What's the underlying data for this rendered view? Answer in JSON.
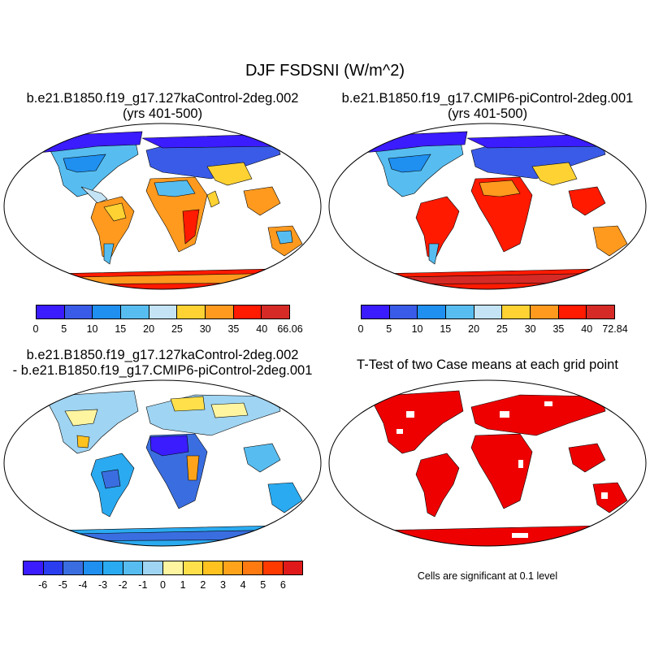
{
  "title": "DJF FSDSNI (W/m^2)",
  "panels": {
    "top_left": {
      "title_line1": "b.e21.B1850.f19_g17.127kaControl-2deg.002",
      "title_line2": "(yrs 401-500)"
    },
    "top_right": {
      "title_line1": "b.e21.B1850.f19_g17.CMIP6-piControl-2deg.001",
      "title_line2": "(yrs 401-500)"
    },
    "bottom_left": {
      "title_line1": "b.e21.B1850.f19_g17.127kaControl-2deg.002",
      "title_line2": "- b.e21.B1850.f19_g17.CMIP6-piControl-2deg.001"
    },
    "bottom_right": {
      "title_line1": "T-Test of two Case means at each grid point",
      "note": "Cells are significant at 0.1 level"
    }
  },
  "colorbars": {
    "case1": {
      "colors": [
        "#3a1cff",
        "#3a5be8",
        "#1f8ff0",
        "#57bdf0",
        "#c4e4f5",
        "#ffd233",
        "#ff9a1f",
        "#ff1a00",
        "#d62a26"
      ],
      "labels": [
        "0",
        "5",
        "10",
        "15",
        "20",
        "25",
        "30",
        "35",
        "40",
        "66.06"
      ]
    },
    "case2": {
      "colors": [
        "#3a1cff",
        "#3a5be8",
        "#1f8ff0",
        "#57bdf0",
        "#c4e4f5",
        "#ffd233",
        "#ff9a1f",
        "#ff1a00",
        "#d62a26"
      ],
      "labels": [
        "0",
        "5",
        "10",
        "15",
        "20",
        "25",
        "30",
        "35",
        "40",
        "72.84"
      ]
    },
    "diff": {
      "colors": [
        "#3a1cff",
        "#2a3ef0",
        "#3a6ee0",
        "#1f8ff0",
        "#2aaaf0",
        "#57bdf0",
        "#9fd4f2",
        "#fff5a0",
        "#ffe04a",
        "#ffc21f",
        "#ffa31a",
        "#ff7a10",
        "#ff3a00",
        "#e01a1a",
        "#c83030"
      ],
      "labels": [
        "-6",
        "-5",
        "-4",
        "-3",
        "-2",
        "-1",
        "0",
        "1",
        "2",
        "3",
        "4",
        "5",
        "6"
      ]
    }
  },
  "significance_color": "#ee0000"
}
